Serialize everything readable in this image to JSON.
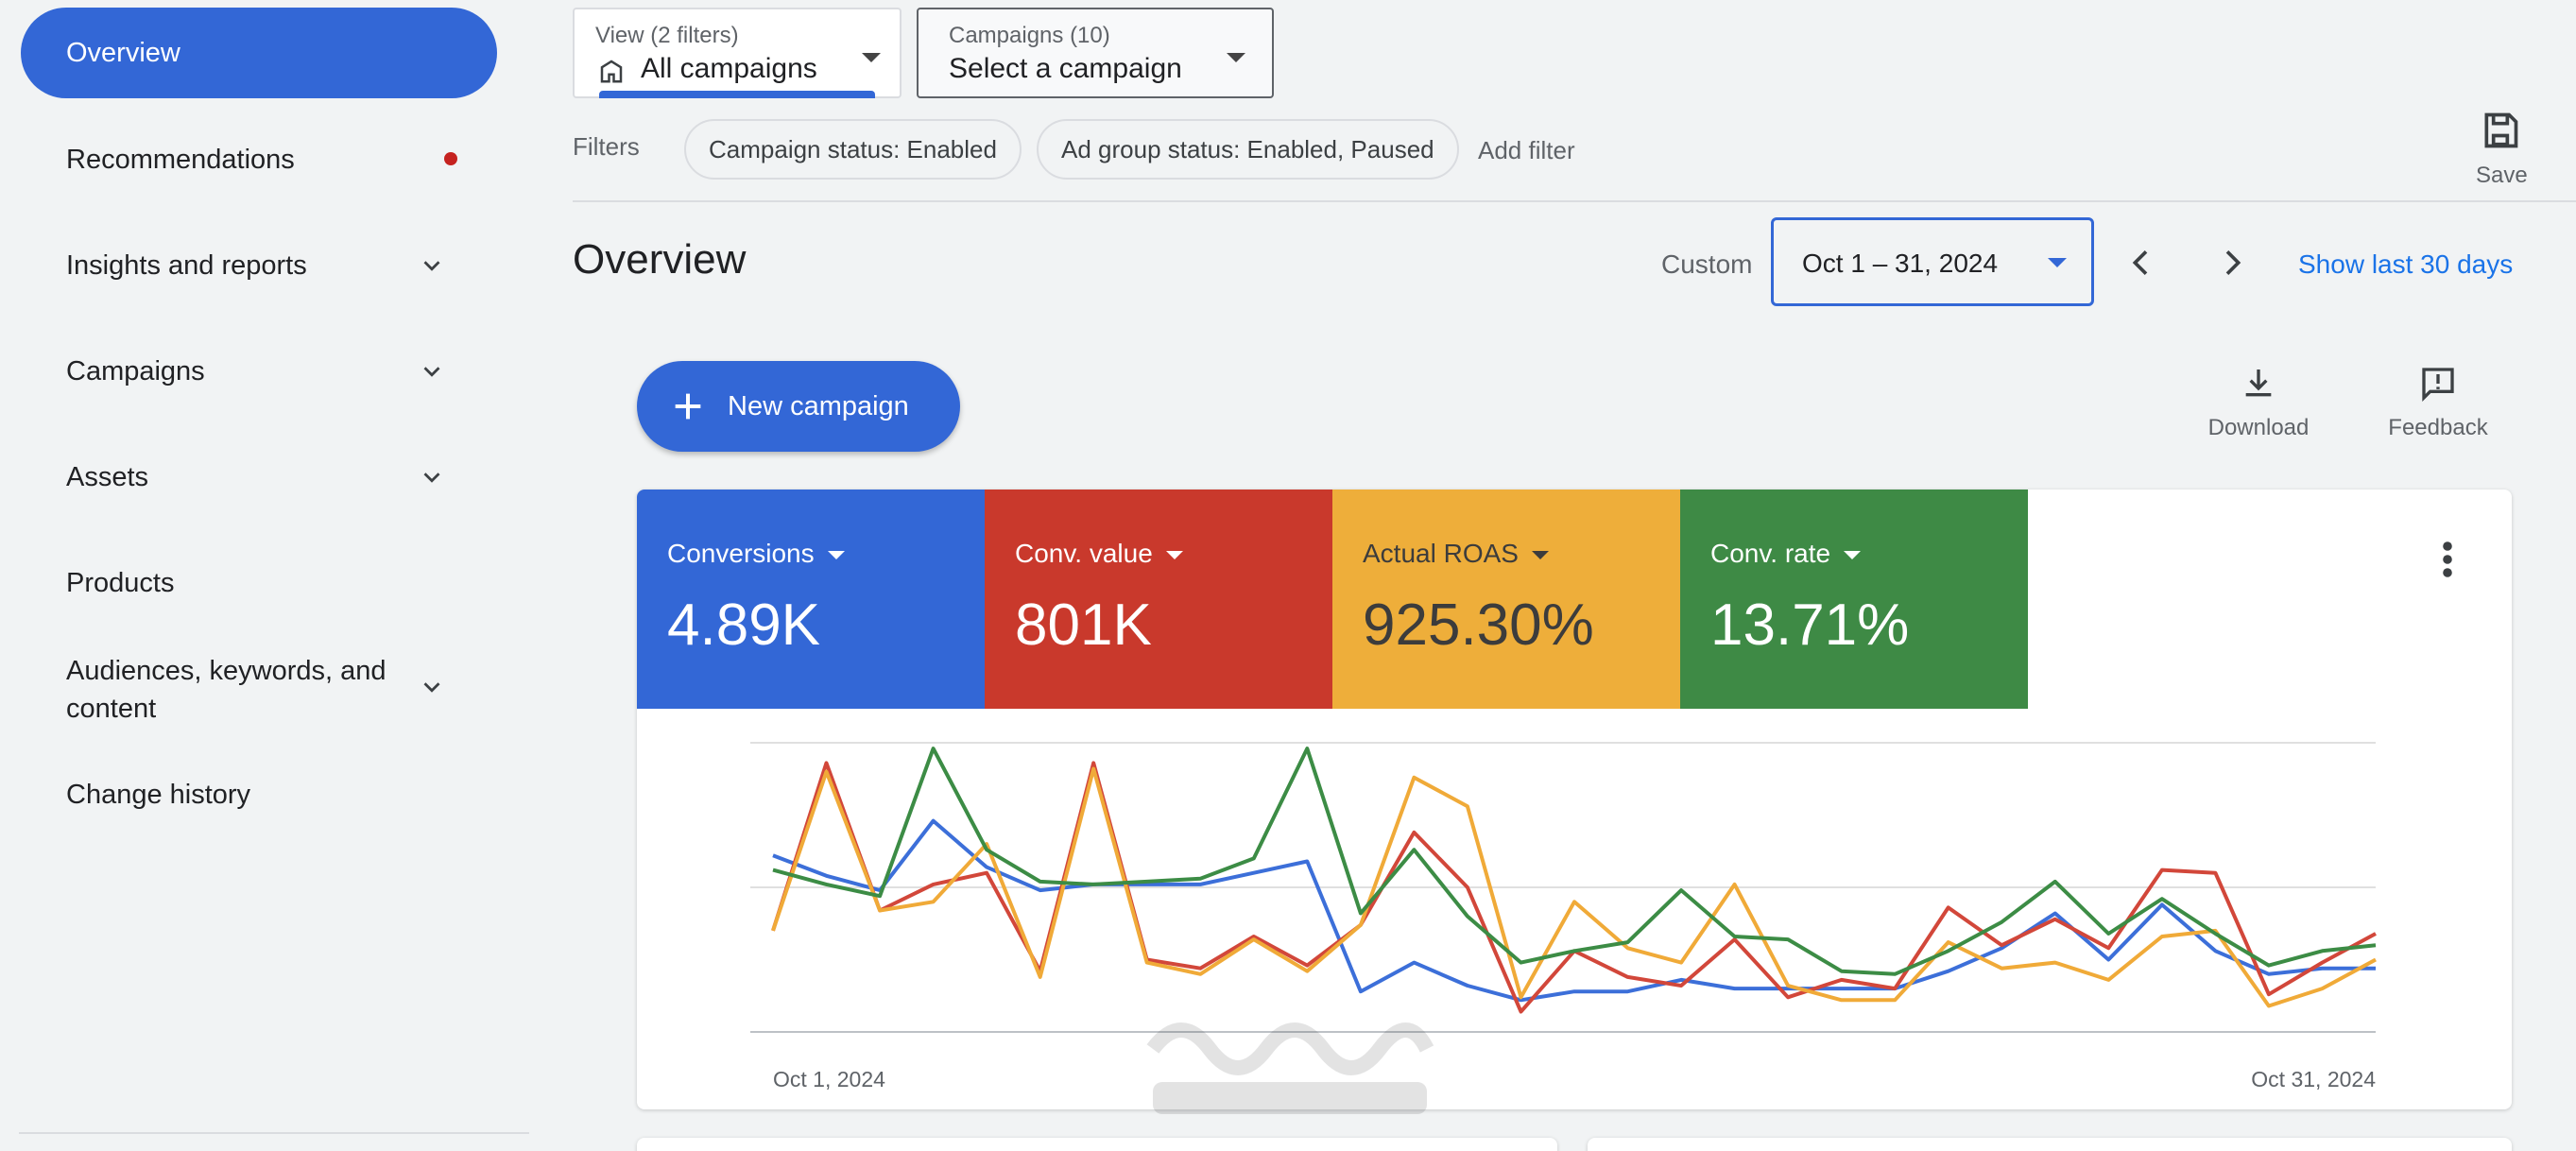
{
  "sidebar": {
    "active": "Overview",
    "items": [
      {
        "label": "Recommendations"
      },
      {
        "label": "Insights and reports"
      },
      {
        "label": "Campaigns"
      },
      {
        "label": "Assets"
      },
      {
        "label": "Products"
      },
      {
        "label": "Audiences, keywords, and content"
      },
      {
        "label": "Change history"
      }
    ]
  },
  "topbar": {
    "view_small": "View (2 filters)",
    "view_value": "All campaigns",
    "campaigns_small": "Campaigns (10)",
    "campaigns_value": "Select a campaign",
    "filters_label": "Filters",
    "chip_status": "Campaign status: Enabled",
    "chip_adgroup": "Ad group status: Enabled, Paused",
    "add_filter": "Add filter",
    "save": "Save"
  },
  "header": {
    "title": "Overview",
    "custom": "Custom",
    "date_range": "Oct 1 – 31, 2024",
    "show_last": "Show last 30 days"
  },
  "actions": {
    "new_campaign": "New campaign",
    "download": "Download",
    "feedback": "Feedback"
  },
  "metrics": [
    {
      "label": "Conversions",
      "value": "4.89K",
      "color": "#3367d6"
    },
    {
      "label": "Conv. value",
      "value": "801K",
      "color": "#c9392c"
    },
    {
      "label": "Actual ROAS",
      "value": "925.30%",
      "color": "#eeae3a"
    },
    {
      "label": "Conv. rate",
      "value": "13.71%",
      "color": "#3e8a45"
    }
  ],
  "colors": {
    "accent": "#3367d6",
    "link": "#1a73e8"
  },
  "chart_data": {
    "type": "line",
    "x_start_label": "Oct 1, 2024",
    "x_end_label": "Oct 31, 2024",
    "grid": true,
    "series": [
      {
        "color": "#3c6fd9",
        "values": [
          61,
          54,
          49,
          73,
          57,
          49,
          51,
          51,
          51,
          55,
          59,
          14,
          24,
          16,
          11,
          14,
          14,
          18,
          15,
          15,
          15,
          15,
          21,
          29,
          41,
          25,
          44,
          28,
          20,
          22,
          22
        ]
      },
      {
        "color": "#d2473a",
        "values": [
          35,
          93,
          42,
          51,
          55,
          21,
          93,
          25,
          22,
          33,
          23,
          37,
          69,
          50,
          7,
          28,
          19,
          16,
          32,
          12,
          18,
          15,
          43,
          30,
          39,
          29,
          56,
          55,
          13,
          24,
          34
        ]
      },
      {
        "color": "#f0aa38",
        "values": [
          35,
          90,
          42,
          45,
          65,
          19,
          91,
          24,
          20,
          32,
          21,
          37,
          88,
          78,
          12,
          45,
          29,
          24,
          51,
          16,
          11,
          11,
          31,
          22,
          24,
          18,
          33,
          35,
          9,
          15,
          25
        ]
      },
      {
        "color": "#3c8c45",
        "values": [
          56,
          51,
          47,
          98,
          63,
          52,
          51,
          52,
          53,
          60,
          98,
          41,
          63,
          40,
          24,
          28,
          31,
          49,
          33,
          32,
          21,
          20,
          28,
          38,
          52,
          34,
          46,
          34,
          23,
          28,
          30
        ]
      }
    ]
  }
}
